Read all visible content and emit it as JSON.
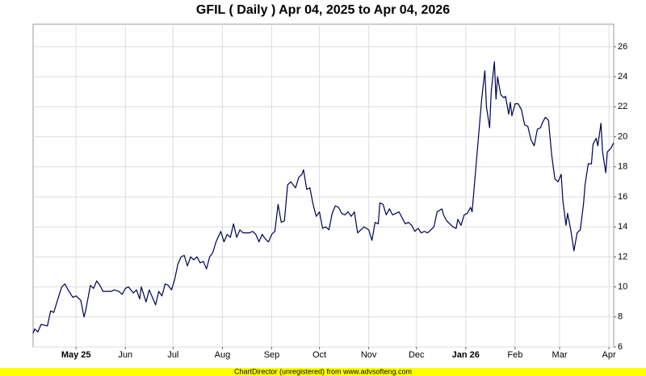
{
  "chart_data": {
    "type": "line",
    "title": "GFIL ( Daily ) Apr 04, 2025 to Apr 04, 2026",
    "footer": "ChartDirector (unregistered) from www.advsofteng.com",
    "xlim": [
      "2025-04-04",
      "2026-04-04"
    ],
    "xticks": [
      {
        "value": "2025-05-01",
        "label": "May 25"
      },
      {
        "value": "2025-06-01",
        "label": "Jun"
      },
      {
        "value": "2025-07-01",
        "label": "Jul"
      },
      {
        "value": "2025-08-01",
        "label": "Aug"
      },
      {
        "value": "2025-09-01",
        "label": "Sep"
      },
      {
        "value": "2025-10-01",
        "label": "Oct"
      },
      {
        "value": "2025-11-01",
        "label": "Nov"
      },
      {
        "value": "2025-12-01",
        "label": "Dec"
      },
      {
        "value": "2026-01-01",
        "label": "Jan 26"
      },
      {
        "value": "2026-02-01",
        "label": "Feb"
      },
      {
        "value": "2026-03-01",
        "label": "Mar"
      },
      {
        "value": "2026-04-01",
        "label": "Apr"
      }
    ],
    "ylim": [
      6,
      27.5
    ],
    "yticks": [
      6,
      8,
      10,
      12,
      14,
      16,
      18,
      20,
      22,
      24,
      26
    ],
    "grid": true,
    "series": [
      {
        "color": "#000050",
        "x": [
          "2025-04-04",
          "2025-04-05",
          "2025-04-07",
          "2025-04-09",
          "2025-04-13",
          "2025-04-15",
          "2025-04-17",
          "2025-04-19",
          "2025-04-22",
          "2025-04-24",
          "2025-04-26",
          "2025-04-29",
          "2025-05-01",
          "2025-05-04",
          "2025-05-06",
          "2025-05-07",
          "2025-05-10",
          "2025-05-12",
          "2025-05-14",
          "2025-05-16",
          "2025-05-18",
          "2025-05-21",
          "2025-05-23",
          "2025-05-25",
          "2025-05-28",
          "2025-05-30",
          "2025-06-01",
          "2025-06-03",
          "2025-06-06",
          "2025-06-08",
          "2025-06-10",
          "2025-06-11",
          "2025-06-14",
          "2025-06-16",
          "2025-06-18",
          "2025-06-20",
          "2025-06-22",
          "2025-06-24",
          "2025-06-26",
          "2025-06-28",
          "2025-06-30",
          "2025-07-02",
          "2025-07-04",
          "2025-07-06",
          "2025-07-08",
          "2025-07-10",
          "2025-07-12",
          "2025-07-14",
          "2025-07-16",
          "2025-07-18",
          "2025-07-20",
          "2025-07-22",
          "2025-07-24",
          "2025-07-26",
          "2025-07-28",
          "2025-07-31",
          "2025-08-02",
          "2025-08-04",
          "2025-08-06",
          "2025-08-08",
          "2025-08-10",
          "2025-08-12",
          "2025-08-14",
          "2025-08-16",
          "2025-08-18",
          "2025-08-20",
          "2025-08-22",
          "2025-08-24",
          "2025-08-26",
          "2025-08-28",
          "2025-08-30",
          "2025-09-01",
          "2025-09-03",
          "2025-09-05",
          "2025-09-07",
          "2025-09-09",
          "2025-09-11",
          "2025-09-13",
          "2025-09-16",
          "2025-09-18",
          "2025-09-20",
          "2025-09-21",
          "2025-09-23",
          "2025-09-25",
          "2025-09-27",
          "2025-09-29",
          "2025-10-01",
          "2025-10-03",
          "2025-10-05",
          "2025-10-07",
          "2025-10-09",
          "2025-10-11",
          "2025-10-13",
          "2025-10-15",
          "2025-10-17",
          "2025-10-19",
          "2025-10-21",
          "2025-10-23",
          "2025-10-25",
          "2025-10-27",
          "2025-10-29",
          "2025-11-01",
          "2025-11-03",
          "2025-11-05",
          "2025-11-07",
          "2025-11-08",
          "2025-11-10",
          "2025-11-12",
          "2025-11-14",
          "2025-11-16",
          "2025-11-18",
          "2025-11-20",
          "2025-11-22",
          "2025-11-24",
          "2025-11-26",
          "2025-11-28",
          "2025-11-30",
          "2025-12-02",
          "2025-12-04",
          "2025-12-06",
          "2025-12-08",
          "2025-12-10",
          "2025-12-12",
          "2025-12-14",
          "2025-12-17",
          "2025-12-18",
          "2025-12-20",
          "2025-12-22",
          "2025-12-24",
          "2025-12-26",
          "2025-12-27",
          "2025-12-29",
          "2025-12-31",
          "2026-01-02",
          "2026-01-04",
          "2026-01-05",
          "2026-01-07",
          "2026-01-09",
          "2026-01-11",
          "2026-01-13",
          "2026-01-14",
          "2026-01-16",
          "2026-01-17",
          "2026-01-19",
          "2026-01-20",
          "2026-01-21",
          "2026-01-23",
          "2026-01-25",
          "2026-01-26",
          "2026-01-28",
          "2026-01-29",
          "2026-01-30",
          "2026-02-01",
          "2026-02-03",
          "2026-02-05",
          "2026-02-07",
          "2026-02-09",
          "2026-02-11",
          "2026-02-13",
          "2026-02-15",
          "2026-02-17",
          "2026-02-18",
          "2026-02-20",
          "2026-02-22",
          "2026-02-24",
          "2026-02-26",
          "2026-02-28",
          "2026-03-02",
          "2026-03-03",
          "2026-03-05",
          "2026-03-06",
          "2026-03-08",
          "2026-03-10",
          "2026-03-12",
          "2026-03-14",
          "2026-03-16",
          "2026-03-17",
          "2026-03-19",
          "2026-03-21",
          "2026-03-22",
          "2026-03-24",
          "2026-03-25",
          "2026-03-27",
          "2026-03-28",
          "2026-03-30",
          "2026-03-31",
          "2026-04-02",
          "2026-04-04"
        ],
        "values": [
          6.9,
          7.2,
          7.0,
          7.5,
          7.4,
          8.4,
          8.3,
          9.0,
          10.0,
          10.2,
          9.8,
          9.3,
          9.4,
          9.1,
          8.0,
          8.4,
          10.1,
          9.9,
          10.4,
          10.1,
          9.7,
          9.7,
          9.7,
          9.8,
          9.7,
          9.5,
          9.9,
          10.0,
          9.6,
          9.8,
          9.2,
          10.0,
          9.0,
          9.8,
          9.3,
          8.8,
          9.7,
          9.4,
          10.2,
          10.1,
          9.8,
          10.5,
          11.5,
          12.0,
          12.1,
          11.4,
          12.0,
          11.8,
          12.0,
          11.6,
          11.7,
          11.2,
          12.0,
          12.3,
          13.0,
          13.7,
          13.0,
          13.5,
          13.3,
          14.2,
          13.3,
          13.8,
          13.6,
          13.6,
          13.6,
          13.7,
          13.5,
          13.0,
          13.5,
          13.2,
          13.0,
          13.5,
          13.7,
          15.5,
          14.3,
          14.4,
          16.8,
          17.0,
          16.6,
          17.3,
          17.5,
          17.8,
          16.5,
          16.6,
          15.5,
          14.7,
          15.0,
          13.9,
          14.0,
          13.8,
          14.9,
          15.4,
          15.3,
          14.9,
          14.8,
          15.0,
          14.7,
          15.0,
          13.6,
          13.8,
          14.0,
          13.8,
          13.1,
          14.3,
          14.2,
          15.6,
          15.5,
          14.8,
          15.2,
          14.8,
          14.9,
          15.0,
          14.6,
          14.2,
          14.3,
          14.1,
          13.7,
          13.9,
          13.6,
          13.7,
          13.6,
          13.8,
          14.0,
          15.0,
          15.2,
          14.8,
          14.4,
          14.2,
          14.0,
          13.9,
          14.5,
          14.1,
          14.8,
          14.9,
          15.3,
          15.0,
          17.5,
          20.0,
          22.5,
          24.4,
          22.0,
          20.6,
          23.0,
          25.0,
          22.5,
          24.0,
          22.8,
          22.6,
          22.7,
          21.5,
          22.3,
          21.4,
          22.2,
          22.2,
          21.8,
          20.8,
          20.7,
          19.8,
          19.4,
          20.5,
          20.6,
          20.9,
          21.3,
          21.1,
          18.8,
          17.2,
          17.0,
          17.5,
          15.8,
          14.1,
          14.9,
          13.8,
          12.4,
          13.6,
          13.8,
          15.5,
          16.8,
          18.2,
          18.2,
          19.5,
          19.9,
          19.4,
          20.9,
          19.0,
          17.6,
          19.0,
          19.2,
          19.6
        ]
      }
    ]
  }
}
